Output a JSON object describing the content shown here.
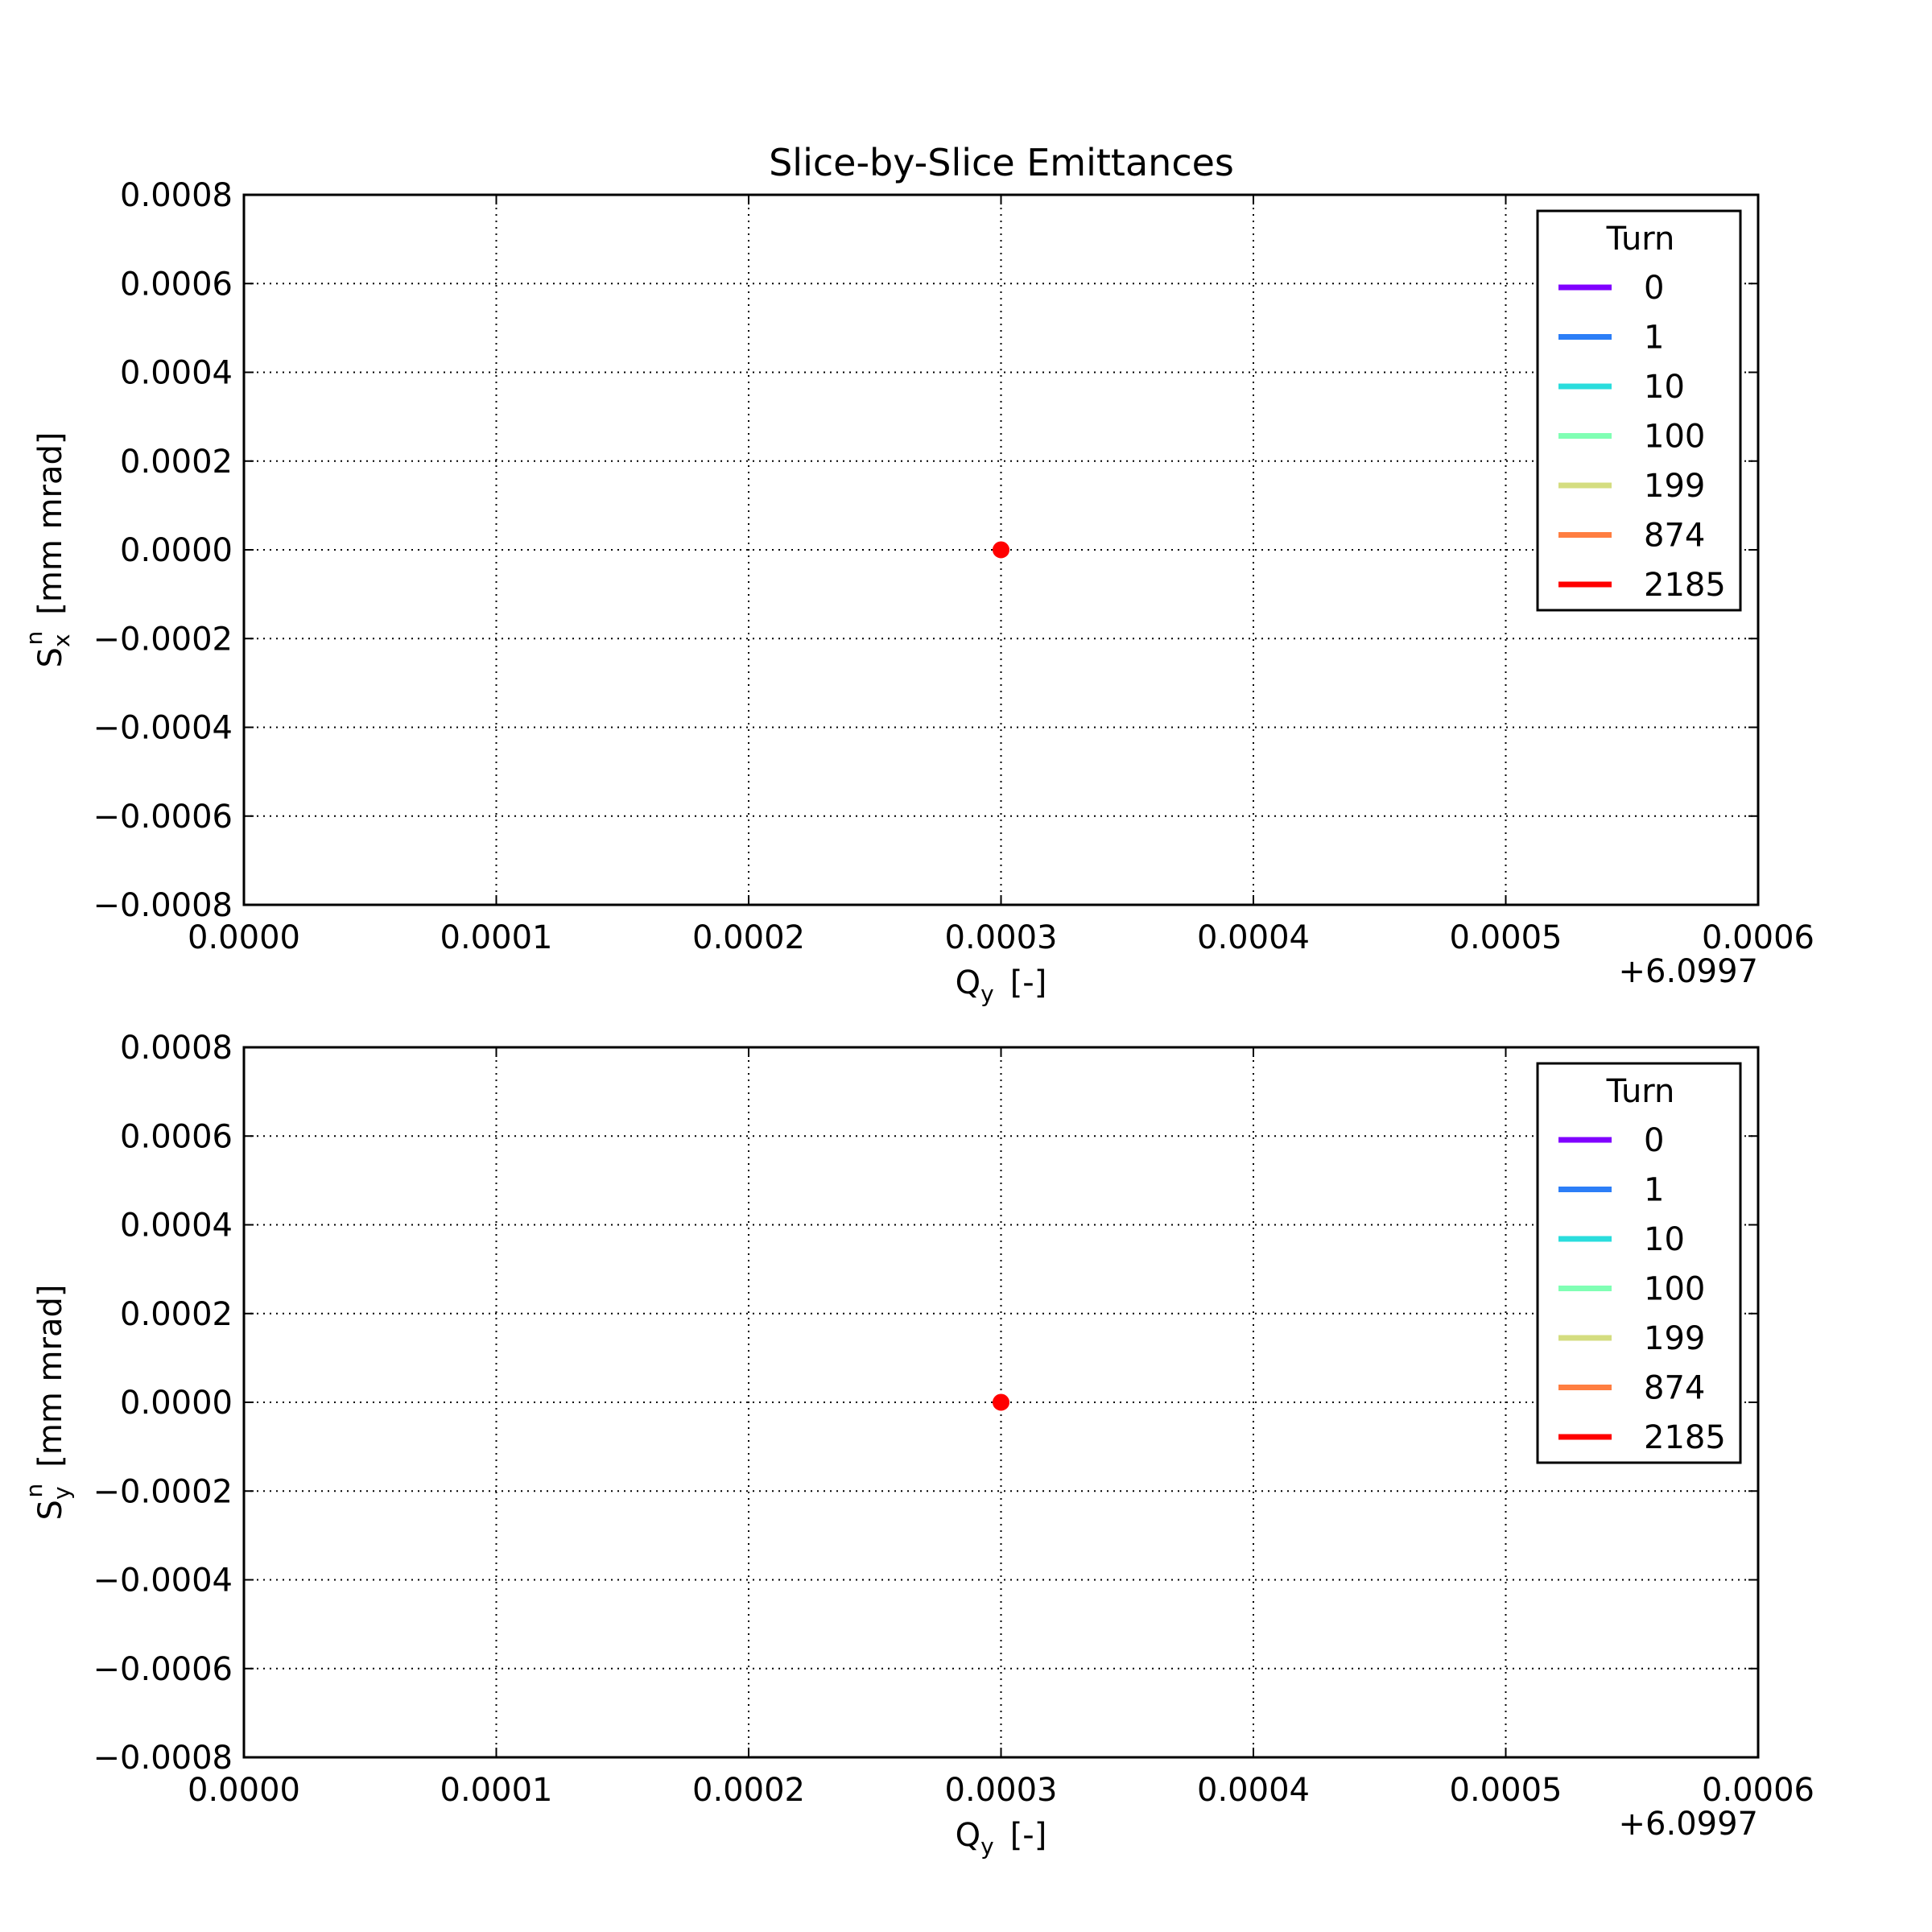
{
  "figure": {
    "title": "Slice-by-Slice Emittances",
    "x_offset_label": "+6.0997"
  },
  "chart_data": [
    {
      "type": "scatter",
      "xlabel": {
        "main": "Q",
        "sub": "y",
        "unit": "[-]"
      },
      "ylabel": {
        "main": "S",
        "sub": "x",
        "sup": "n",
        "unit": "[mm mrad]"
      },
      "xlim": [
        0.0,
        0.0006
      ],
      "ylim": [
        -0.0008,
        0.0008
      ],
      "x_offset": 6.0997,
      "xticks": [
        0.0,
        0.0001,
        0.0002,
        0.0003,
        0.0004,
        0.0005,
        0.0006
      ],
      "xtick_labels": [
        "0.0000",
        "0.0001",
        "0.0002",
        "0.0003",
        "0.0004",
        "0.0005",
        "0.0006"
      ],
      "yticks": [
        0.0008,
        0.0006,
        0.0004,
        0.0002,
        0.0,
        -0.0002,
        -0.0004,
        -0.0006,
        -0.0008
      ],
      "ytick_labels": [
        "0.0008",
        "0.0006",
        "0.0004",
        "0.0002",
        "0.0000",
        "−0.0002",
        "−0.0004",
        "−0.0006",
        "−0.0008"
      ],
      "grid": true,
      "legend": {
        "title": "Turn",
        "position": "top-right",
        "entries": [
          {
            "label": "0",
            "color": "#8000ff"
          },
          {
            "label": "1",
            "color": "#2c7ef7"
          },
          {
            "label": "10",
            "color": "#2adddd"
          },
          {
            "label": "100",
            "color": "#80ffb4"
          },
          {
            "label": "199",
            "color": "#d4dd80"
          },
          {
            "label": "874",
            "color": "#ff7e41"
          },
          {
            "label": "2185",
            "color": "#ff0000"
          }
        ]
      },
      "points": [
        {
          "x": 0.0003,
          "y": 0.0,
          "color": "#ff0000"
        }
      ]
    },
    {
      "type": "scatter",
      "xlabel": {
        "main": "Q",
        "sub": "y",
        "unit": "[-]"
      },
      "ylabel": {
        "main": "S",
        "sub": "y",
        "sup": "n",
        "unit": "[mm mrad]"
      },
      "xlim": [
        0.0,
        0.0006
      ],
      "ylim": [
        -0.0008,
        0.0008
      ],
      "x_offset": 6.0997,
      "xticks": [
        0.0,
        0.0001,
        0.0002,
        0.0003,
        0.0004,
        0.0005,
        0.0006
      ],
      "xtick_labels": [
        "0.0000",
        "0.0001",
        "0.0002",
        "0.0003",
        "0.0004",
        "0.0005",
        "0.0006"
      ],
      "yticks": [
        0.0008,
        0.0006,
        0.0004,
        0.0002,
        0.0,
        -0.0002,
        -0.0004,
        -0.0006,
        -0.0008
      ],
      "ytick_labels": [
        "0.0008",
        "0.0006",
        "0.0004",
        "0.0002",
        "0.0000",
        "−0.0002",
        "−0.0004",
        "−0.0006",
        "−0.0008"
      ],
      "grid": true,
      "legend": {
        "title": "Turn",
        "position": "top-right",
        "entries": [
          {
            "label": "0",
            "color": "#8000ff"
          },
          {
            "label": "1",
            "color": "#2c7ef7"
          },
          {
            "label": "10",
            "color": "#2adddd"
          },
          {
            "label": "100",
            "color": "#80ffb4"
          },
          {
            "label": "199",
            "color": "#d4dd80"
          },
          {
            "label": "874",
            "color": "#ff7e41"
          },
          {
            "label": "2185",
            "color": "#ff0000"
          }
        ]
      },
      "points": [
        {
          "x": 0.0003,
          "y": 0.0,
          "color": "#ff0000"
        }
      ]
    }
  ]
}
